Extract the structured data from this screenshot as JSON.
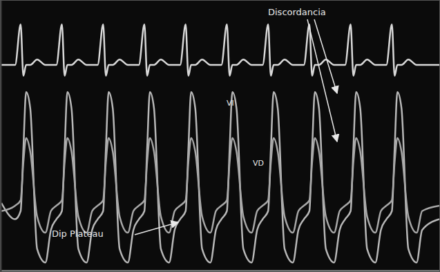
{
  "chart_data": {
    "type": "line",
    "tick_labels": false,
    "grid": true,
    "xlim": [
      0,
      637
    ],
    "ylim": [
      0,
      100
    ],
    "yticks": [
      7,
      13,
      19,
      25,
      31,
      37,
      44,
      50,
      56,
      62
    ],
    "annotations": [
      {
        "text": "Discordancia"
      },
      {
        "text": "VI"
      },
      {
        "text": "VD"
      },
      {
        "text": "Dip Plateau"
      }
    ],
    "x": [
      0,
      20,
      28,
      32,
      36,
      42,
      52,
      64,
      72,
      80,
      88,
      92,
      96,
      102,
      112,
      124,
      132,
      140,
      148,
      152,
      156,
      162,
      172,
      184,
      192,
      200,
      208,
      212,
      216,
      222,
      232,
      244,
      252,
      260,
      268,
      272,
      276,
      282,
      292,
      304,
      312,
      320,
      328,
      332,
      336,
      342,
      352,
      364,
      372,
      380,
      388,
      392,
      396,
      402,
      412,
      424,
      432,
      440,
      448,
      452,
      456,
      462,
      472,
      484,
      492,
      500,
      508,
      512,
      516,
      522,
      532,
      544,
      552,
      560,
      568,
      572,
      576,
      582,
      592,
      604,
      612,
      637
    ],
    "series": [
      {
        "color": "#d8d8d8",
        "values": [
          76,
          76,
          91,
          72,
          76,
          76,
          78,
          76,
          76,
          76,
          91,
          72,
          76,
          76,
          78,
          76,
          76,
          76,
          91,
          72,
          76,
          76,
          78,
          76,
          76,
          76,
          91,
          72,
          76,
          76,
          78,
          76,
          76,
          76,
          91,
          72,
          76,
          76,
          78,
          76,
          76,
          76,
          91,
          72,
          76,
          76,
          78,
          76,
          76,
          76,
          91,
          72,
          76,
          76,
          78,
          76,
          76,
          76,
          91,
          72,
          76,
          76,
          78,
          76,
          76,
          76,
          91,
          72,
          76,
          76,
          78,
          76,
          76,
          76,
          91,
          72,
          76,
          76,
          78,
          76,
          76,
          76
        ]
      },
      {
        "color": "#b8b8b8",
        "values": [
          25,
          19,
          22,
          45,
          66,
          60,
          8,
          3,
          15,
          19,
          22,
          45,
          66,
          60,
          8,
          3,
          15,
          19,
          22,
          45,
          66,
          60,
          8,
          3,
          15,
          19,
          22,
          45,
          66,
          60,
          8,
          3,
          15,
          19,
          22,
          45,
          66,
          60,
          8,
          3,
          15,
          19,
          22,
          45,
          66,
          60,
          8,
          3,
          15,
          19,
          22,
          45,
          66,
          60,
          8,
          3,
          15,
          19,
          22,
          45,
          66,
          60,
          8,
          3,
          15,
          19,
          22,
          45,
          66,
          60,
          8,
          3,
          15,
          19,
          22,
          45,
          66,
          60,
          8,
          3,
          15,
          19
        ]
      },
      {
        "color": "#a8a8a8",
        "values": [
          22,
          24,
          26,
          40,
          49,
          44,
          20,
          14,
          22,
          24,
          26,
          40,
          49,
          44,
          20,
          14,
          22,
          24,
          26,
          40,
          49,
          44,
          20,
          14,
          22,
          24,
          26,
          40,
          49,
          44,
          20,
          14,
          22,
          24,
          26,
          40,
          49,
          44,
          20,
          14,
          22,
          24,
          26,
          40,
          49,
          44,
          20,
          14,
          22,
          24,
          26,
          40,
          49,
          44,
          20,
          14,
          22,
          24,
          26,
          40,
          49,
          44,
          20,
          14,
          22,
          24,
          26,
          40,
          49,
          44,
          20,
          14,
          22,
          24,
          26,
          40,
          49,
          44,
          20,
          14,
          22,
          24
        ]
      }
    ]
  }
}
